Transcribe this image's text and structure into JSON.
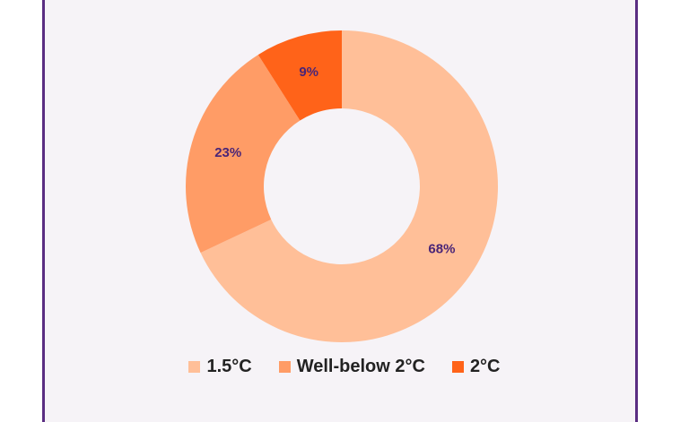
{
  "chart_data": {
    "type": "pie",
    "variant": "donut",
    "title": "",
    "labels": [
      "1.5°C",
      "Well-below 2°C",
      "2°C"
    ],
    "values": [
      68,
      23,
      9
    ],
    "value_labels": [
      "68%",
      "23%",
      "9%"
    ],
    "colors": [
      "#ffbf98",
      "#ff9c66",
      "#ff6319"
    ],
    "start_angle_deg": 0,
    "direction": "clockwise",
    "legend_position": "bottom"
  },
  "legend": {
    "items": [
      {
        "label": "1.5°C",
        "color": "#ffbf98"
      },
      {
        "label": "Well-below 2°C",
        "color": "#ff9c66"
      },
      {
        "label": "2°C",
        "color": "#ff6319"
      }
    ]
  }
}
